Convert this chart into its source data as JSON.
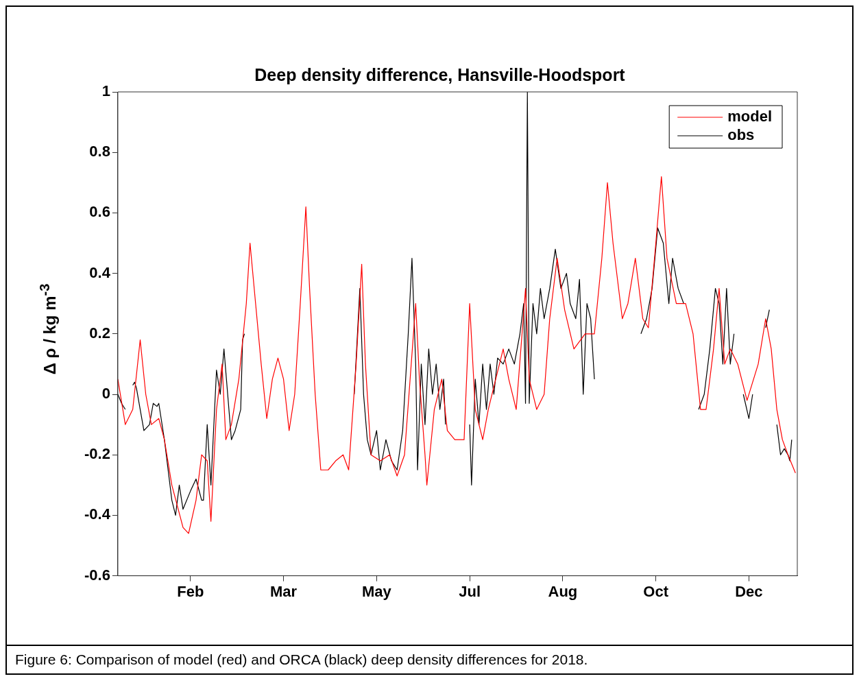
{
  "chart_data": {
    "type": "line",
    "title": "Deep density difference, Hansville-Hoodsport",
    "ylabel": "Δ ρ / kg m$^{-3}$",
    "annotations": [
      "Figure 6:  Comparison of model (red) and ORCA (black) deep density differences for 2018."
    ],
    "xlim": [
      "2018-01-01",
      "2019-01-01"
    ],
    "xticks": [
      {
        "value": "2018-02-09",
        "label": "Feb"
      },
      {
        "value": "2018-03-31",
        "label": "Mar"
      },
      {
        "value": "2018-05-20",
        "label": "May"
      },
      {
        "value": "2018-07-09",
        "label": "Jul"
      },
      {
        "value": "2018-08-28",
        "label": "Aug"
      },
      {
        "value": "2018-10-17",
        "label": "Oct"
      },
      {
        "value": "2018-12-06",
        "label": "Dec"
      }
    ],
    "ylim": [
      -0.6,
      1
    ],
    "yticks": [
      -0.6,
      -0.4,
      -0.2,
      0,
      0.2,
      0.4,
      0.6,
      0.8,
      1
    ],
    "grid": false,
    "legend": "top right",
    "marker": "none",
    "line_style": "solid",
    "series": [
      {
        "name": "model",
        "color": "#ff0000",
        "x": [
          "2018-01-01",
          "2018-01-05",
          "2018-01-09",
          "2018-01-13",
          "2018-01-16",
          "2018-01-19",
          "2018-01-23",
          "2018-01-26",
          "2018-01-30",
          "2018-02-05",
          "2018-02-08",
          "2018-02-12",
          "2018-02-15",
          "2018-02-18",
          "2018-02-20",
          "2018-02-23",
          "2018-02-26",
          "2018-02-28",
          "2018-03-03",
          "2018-03-07",
          "2018-03-11",
          "2018-03-13",
          "2018-03-16",
          "2018-03-19",
          "2018-03-22",
          "2018-03-25",
          "2018-03-28",
          "2018-03-31",
          "2018-04-03",
          "2018-04-06",
          "2018-04-09",
          "2018-04-12",
          "2018-04-14",
          "2018-04-17",
          "2018-04-20",
          "2018-04-24",
          "2018-04-28",
          "2018-05-02",
          "2018-05-05",
          "2018-05-09",
          "2018-05-12",
          "2018-05-14",
          "2018-05-17",
          "2018-05-22",
          "2018-05-27",
          "2018-05-31",
          "2018-06-04",
          "2018-06-07",
          "2018-06-10",
          "2018-06-12",
          "2018-06-15",
          "2018-06-16",
          "2018-06-20",
          "2018-06-24",
          "2018-06-27",
          "2018-07-01",
          "2018-07-06",
          "2018-07-09",
          "2018-07-12",
          "2018-07-16",
          "2018-07-19",
          "2018-07-23",
          "2018-07-27",
          "2018-07-30",
          "2018-08-03",
          "2018-08-08",
          "2018-08-10",
          "2018-08-14",
          "2018-08-18",
          "2018-08-21",
          "2018-08-25",
          "2018-08-29",
          "2018-09-03",
          "2018-09-09",
          "2018-09-14",
          "2018-09-18",
          "2018-09-21",
          "2018-09-24",
          "2018-09-29",
          "2018-10-02",
          "2018-10-06",
          "2018-10-10",
          "2018-10-13",
          "2018-10-17",
          "2018-10-20",
          "2018-10-23",
          "2018-10-28",
          "2018-11-02",
          "2018-11-06",
          "2018-11-10",
          "2018-11-13",
          "2018-11-17",
          "2018-11-20",
          "2018-11-23",
          "2018-11-26",
          "2018-11-30",
          "2018-12-05",
          "2018-12-11",
          "2018-12-15",
          "2018-12-18",
          "2018-12-21",
          "2018-12-24",
          "2018-12-27",
          "2018-12-31"
        ],
        "values": [
          0.05,
          -0.1,
          -0.05,
          0.18,
          0,
          -0.1,
          -0.08,
          -0.15,
          -0.3,
          -0.44,
          -0.46,
          -0.35,
          -0.2,
          -0.22,
          -0.42,
          -0.05,
          0.1,
          -0.15,
          -0.1,
          0.05,
          0.3,
          0.5,
          0.3,
          0.1,
          -0.08,
          0.05,
          0.12,
          0.05,
          -0.12,
          0,
          0.3,
          0.62,
          0.35,
          0,
          -0.25,
          -0.25,
          -0.22,
          -0.2,
          -0.25,
          0.1,
          0.43,
          0.1,
          -0.2,
          -0.22,
          -0.2,
          -0.27,
          -0.2,
          0.05,
          0.3,
          0.05,
          -0.2,
          -0.3,
          -0.05,
          0.05,
          -0.12,
          -0.15,
          -0.15,
          0.3,
          -0.05,
          -0.15,
          -0.05,
          0.05,
          0.15,
          0.05,
          -0.05,
          0.35,
          0.05,
          -0.05,
          0,
          0.25,
          0.45,
          0.28,
          0.15,
          0.2,
          0.2,
          0.45,
          0.7,
          0.5,
          0.25,
          0.3,
          0.45,
          0.25,
          0.22,
          0.5,
          0.72,
          0.45,
          0.3,
          0.3,
          0.2,
          -0.05,
          -0.05,
          0.15,
          0.35,
          0.1,
          0.15,
          0.1,
          -0.02,
          0.1,
          0.25,
          0.15,
          -0.05,
          -0.15,
          -0.2,
          -0.26
        ]
      },
      {
        "name": "obs",
        "color": "#000000",
        "x": [
          "2018-01-01",
          "2018-01-03",
          "2018-01-05",
          "2018-01-07",
          "2018-01-09",
          "2018-01-10",
          "2018-01-11",
          "2018-01-13",
          "2018-01-15",
          "2018-01-18",
          "2018-01-20",
          "2018-01-22",
          "2018-01-23",
          "2018-01-26",
          "2018-01-30",
          "2018-02-01",
          "2018-02-03",
          "2018-02-05",
          "2018-02-09",
          "2018-02-12",
          "2018-02-15",
          "2018-02-16",
          "2018-02-18",
          "2018-02-20",
          "2018-02-23",
          "2018-02-25",
          "2018-02-27",
          "2018-03-01",
          "2018-03-03",
          "2018-03-05",
          "2018-03-08",
          "2018-03-09",
          "2018-03-10",
          "2018-04-10",
          "2018-05-08",
          "2018-05-11",
          "2018-05-13",
          "2018-05-15",
          "2018-05-17",
          "2018-05-20",
          "2018-05-22",
          "2018-05-25",
          "2018-05-28",
          "2018-05-31",
          "2018-06-03",
          "2018-06-06",
          "2018-06-08",
          "2018-06-10",
          "2018-06-11",
          "2018-06-13",
          "2018-06-15",
          "2018-06-17",
          "2018-06-19",
          "2018-06-21",
          "2018-06-23",
          "2018-06-25",
          "2018-06-26",
          "2018-07-04",
          "2018-07-09",
          "2018-07-10",
          "2018-07-12",
          "2018-07-14",
          "2018-07-16",
          "2018-07-18",
          "2018-07-20",
          "2018-07-22",
          "2018-07-24",
          "2018-07-27",
          "2018-07-30",
          "2018-08-02",
          "2018-08-05",
          "2018-08-07",
          "2018-08-08",
          "2018-08-09",
          "2018-08-10",
          "2018-08-12",
          "2018-08-14",
          "2018-08-16",
          "2018-08-18",
          "2018-08-21",
          "2018-08-24",
          "2018-08-27",
          "2018-08-30",
          "2018-09-01",
          "2018-09-04",
          "2018-09-06",
          "2018-09-08",
          "2018-09-10",
          "2018-09-12",
          "2018-09-14",
          "2018-09-27",
          "2018-10-09",
          "2018-10-12",
          "2018-10-15",
          "2018-10-18",
          "2018-10-21",
          "2018-10-24",
          "2018-10-26",
          "2018-10-29",
          "2018-11-01",
          "2018-11-05",
          "2018-11-09",
          "2018-11-12",
          "2018-11-15",
          "2018-11-18",
          "2018-11-20",
          "2018-11-22",
          "2018-11-24",
          "2018-11-26",
          "2018-11-28",
          "2018-11-30",
          "2018-12-03",
          "2018-12-06",
          "2018-12-08",
          "2018-12-11",
          "2018-12-15",
          "2018-12-17",
          "2018-12-19",
          "2018-12-21",
          "2018-12-23",
          "2018-12-25",
          "2018-12-27",
          "2018-12-28",
          "2018-12-29"
        ],
        "values": [
          0,
          -0.03,
          -0.05,
          null,
          0.03,
          0.04,
          0.02,
          -0.05,
          -0.12,
          -0.1,
          -0.03,
          -0.04,
          -0.03,
          -0.15,
          -0.35,
          -0.4,
          -0.3,
          -0.38,
          -0.32,
          -0.28,
          -0.35,
          -0.35,
          -0.1,
          -0.3,
          0.08,
          0,
          0.15,
          0,
          -0.15,
          -0.12,
          -0.05,
          0.18,
          0.2,
          null,
          0,
          0.35,
          0,
          -0.15,
          -0.2,
          -0.12,
          -0.25,
          -0.15,
          -0.22,
          -0.25,
          -0.12,
          0.2,
          0.45,
          0.1,
          -0.25,
          0.1,
          -0.1,
          0.15,
          0,
          0.1,
          -0.05,
          0.05,
          -0.1,
          null,
          -0.1,
          -0.3,
          0.05,
          -0.1,
          0.1,
          -0.05,
          0.1,
          0,
          0.12,
          0.1,
          0.15,
          0.1,
          0.2,
          0.3,
          -0.03,
          1,
          -0.03,
          0.3,
          0.2,
          0.35,
          0.25,
          0.35,
          0.48,
          0.35,
          0.4,
          0.3,
          0.25,
          0.38,
          0,
          0.3,
          0.25,
          0.05,
          null,
          0.2,
          0.25,
          0.35,
          0.55,
          0.5,
          0.3,
          0.45,
          0.35,
          0.3,
          null,
          -0.05,
          0,
          0.15,
          0.35,
          0.3,
          0.1,
          0.35,
          0.1,
          0.2,
          null,
          0,
          -0.08,
          0,
          null,
          0.22,
          0.28,
          null,
          -0.1,
          -0.2,
          -0.18,
          -0.2,
          -0.22,
          -0.15
        ]
      }
    ]
  }
}
